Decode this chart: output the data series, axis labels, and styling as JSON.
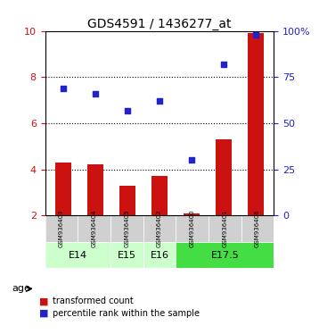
{
  "title": "GDS4591 / 1436277_at",
  "samples": [
    "GSM936403",
    "GSM936404",
    "GSM936405",
    "GSM936402",
    "GSM936400",
    "GSM936401",
    "GSM936406"
  ],
  "red_values": [
    4.3,
    4.2,
    3.3,
    3.7,
    2.1,
    5.3,
    9.9
  ],
  "blue_values": [
    69,
    66,
    57,
    62,
    30,
    82,
    98
  ],
  "ylim_left": [
    2,
    10
  ],
  "ylim_right": [
    0,
    100
  ],
  "yticks_left": [
    2,
    4,
    6,
    8,
    10
  ],
  "ytick_labels_right": [
    "0",
    "25",
    "50",
    "75",
    "100%"
  ],
  "yticks_right": [
    0,
    25,
    50,
    75,
    100
  ],
  "bar_color": "#cc1111",
  "dot_color": "#2222cc",
  "bg_color": "#d8d8d8",
  "plot_bg": "#ffffff",
  "left_tick_color": "#cc1111",
  "right_tick_color": "#2222cc",
  "grid_dotted_at": [
    4,
    6,
    8
  ],
  "group_defs": [
    {
      "label": "E14",
      "samples": [
        "GSM936403",
        "GSM936404"
      ],
      "color": "#ccffcc"
    },
    {
      "label": "E15",
      "samples": [
        "GSM936405"
      ],
      "color": "#ccffcc"
    },
    {
      "label": "E16",
      "samples": [
        "GSM936402"
      ],
      "color": "#ccffcc"
    },
    {
      "label": "E17.5",
      "samples": [
        "GSM936400",
        "GSM936401",
        "GSM936406"
      ],
      "color": "#44dd44"
    }
  ],
  "legend_items": [
    "transformed count",
    "percentile rank within the sample"
  ]
}
